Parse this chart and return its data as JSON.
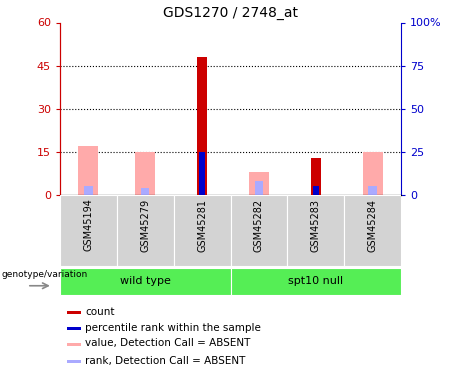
{
  "title": "GDS1270 / 2748_at",
  "samples": [
    "GSM45194",
    "GSM45279",
    "GSM45281",
    "GSM45282",
    "GSM45283",
    "GSM45284"
  ],
  "ylim_left": [
    0,
    60
  ],
  "ylim_right": [
    0,
    100
  ],
  "yticks_left": [
    0,
    15,
    30,
    45,
    60
  ],
  "yticks_right": [
    0,
    25,
    50,
    75,
    100
  ],
  "ytick_labels_left": [
    "0",
    "15",
    "30",
    "45",
    "60"
  ],
  "ytick_labels_right": [
    "0",
    "25",
    "50",
    "75",
    "100%"
  ],
  "count_values": [
    0,
    0,
    48,
    0,
    13,
    0
  ],
  "rank_pct_values": [
    0,
    0,
    25,
    0,
    5,
    0
  ],
  "absent_value_heights": [
    17,
    15,
    0,
    8,
    0,
    15
  ],
  "absent_rank_pct_heights": [
    5,
    4,
    0,
    8,
    0,
    5
  ],
  "count_color": "#cc0000",
  "rank_color": "#0000cc",
  "absent_value_color": "#ffaaaa",
  "absent_rank_color": "#aaaaff",
  "gray_box_color": "#d3d3d3",
  "green_color": "#55ee55",
  "group_boundaries": [
    0,
    3,
    6
  ],
  "group_labels": [
    "wild type",
    "spt10 null"
  ],
  "legend_items": [
    {
      "label": "count",
      "color": "#cc0000"
    },
    {
      "label": "percentile rank within the sample",
      "color": "#0000cc"
    },
    {
      "label": "value, Detection Call = ABSENT",
      "color": "#ffaaaa"
    },
    {
      "label": "rank, Detection Call = ABSENT",
      "color": "#aaaaff"
    }
  ],
  "left_axis_color": "#cc0000",
  "right_axis_color": "#0000cc"
}
